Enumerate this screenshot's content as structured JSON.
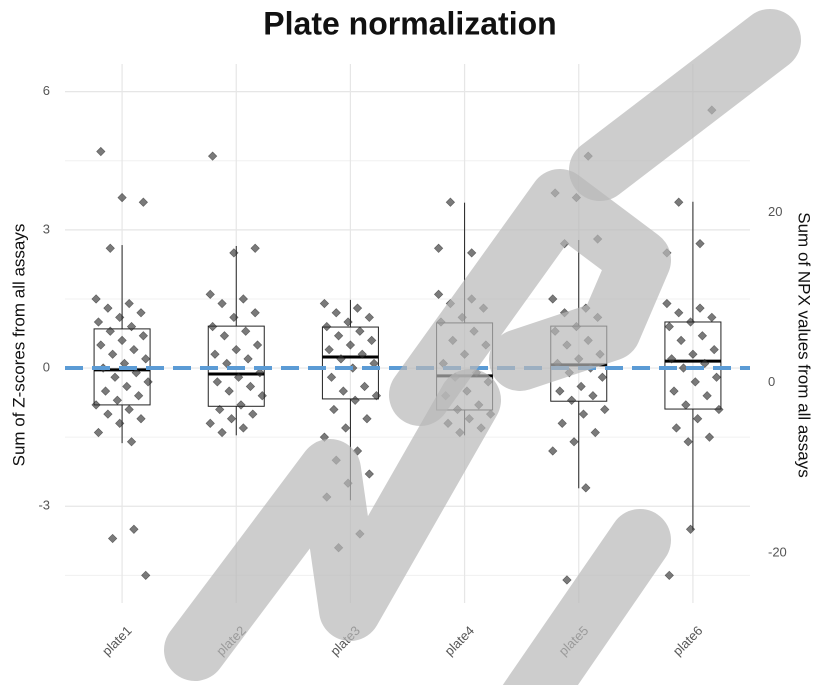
{
  "chart_data": {
    "type": "box",
    "title": "Plate normalization",
    "ylabel": "Sum of Z-scores from all assays",
    "y2label": "Sum of NPX values from all assays",
    "categories": [
      "plate1",
      "plate2",
      "plate3",
      "plate4",
      "plate5",
      "plate6"
    ],
    "ylim": [
      -5.1,
      6.6
    ],
    "yticks": [
      -3,
      0,
      3,
      6
    ],
    "y_minor_ticks": [
      -4.5,
      -1.5,
      1.5,
      4.5
    ],
    "y2lim": [
      -25.9,
      37.5
    ],
    "y2ticks": [
      -20,
      0,
      20
    ],
    "grid": true,
    "reference_line": 0,
    "reference_color": "#5b9bd5",
    "box_color": "#222222",
    "point_color": "#333333",
    "boxes": [
      {
        "whisker_low": -1.63,
        "q1": -0.8,
        "median": -0.04,
        "q3": 0.85,
        "whisker_high": 2.67,
        "points": [
          1.5,
          1.4,
          1.3,
          1.2,
          1.1,
          1.0,
          0.9,
          0.8,
          0.7,
          0.6,
          0.5,
          0.4,
          0.3,
          0.2,
          0.1,
          0,
          -0.1,
          -0.2,
          -0.3,
          -0.4,
          -0.5,
          -0.6,
          -0.7,
          -0.8,
          -0.9,
          -1.0,
          -1.1,
          -1.2,
          -1.4,
          -1.6,
          2.6,
          3.6,
          3.7,
          4.7,
          -3.5,
          -3.7,
          -4.5
        ]
      },
      {
        "whisker_low": -1.46,
        "q1": -0.83,
        "median": -0.13,
        "q3": 0.91,
        "whisker_high": 2.65,
        "points": [
          1.6,
          1.5,
          1.4,
          1.2,
          1.1,
          0.9,
          0.8,
          0.7,
          0.5,
          0.4,
          0.3,
          0.2,
          0.1,
          -0.1,
          -0.2,
          -0.3,
          -0.4,
          -0.5,
          -0.6,
          -0.8,
          -0.9,
          -1.0,
          -1.1,
          -1.2,
          -1.3,
          -1.4,
          2.6,
          2.5,
          4.6
        ]
      },
      {
        "whisker_low": -2.87,
        "q1": -0.67,
        "median": 0.24,
        "q3": 0.89,
        "whisker_high": 1.48,
        "points": [
          1.4,
          1.3,
          1.2,
          1.1,
          1.0,
          0.9,
          0.8,
          0.7,
          0.6,
          0.5,
          0.4,
          0.3,
          0.2,
          0.1,
          0,
          -0.2,
          -0.4,
          -0.5,
          -0.6,
          -0.7,
          -0.9,
          -1.1,
          -1.3,
          -1.5,
          -1.8,
          -2.0,
          -2.3,
          -2.5,
          -2.8,
          -3.6,
          -3.9
        ]
      },
      {
        "whisker_low": -1.46,
        "q1": -0.91,
        "median": -0.17,
        "q3": 0.98,
        "whisker_high": 3.59,
        "points": [
          1.6,
          1.5,
          1.4,
          1.3,
          1.1,
          1.0,
          0.8,
          0.6,
          0.5,
          0.3,
          0.1,
          -0.1,
          -0.2,
          -0.3,
          -0.5,
          -0.6,
          -0.8,
          -0.9,
          -1.0,
          -1.1,
          -1.2,
          -1.3,
          -1.4,
          2.6,
          2.5,
          3.6
        ]
      },
      {
        "whisker_low": -2.61,
        "q1": -0.72,
        "median": 0.07,
        "q3": 0.91,
        "whisker_high": 2.78,
        "points": [
          1.5,
          1.3,
          1.2,
          1.1,
          0.9,
          0.8,
          0.6,
          0.5,
          0.3,
          0.2,
          0.1,
          0,
          -0.1,
          -0.2,
          -0.4,
          -0.5,
          -0.6,
          -0.7,
          -0.9,
          -1.0,
          -1.2,
          -1.4,
          -1.6,
          -1.8,
          -2.6,
          2.7,
          2.8,
          3.7,
          3.8,
          4.6,
          -4.6
        ]
      },
      {
        "whisker_low": -3.52,
        "q1": -0.89,
        "median": 0.15,
        "q3": 1.0,
        "whisker_high": 3.61,
        "points": [
          1.4,
          1.3,
          1.2,
          1.1,
          1.0,
          0.9,
          0.7,
          0.6,
          0.4,
          0.3,
          0.2,
          0.1,
          0,
          -0.2,
          -0.3,
          -0.5,
          -0.6,
          -0.8,
          -0.9,
          -1.1,
          -1.3,
          -1.5,
          -1.6,
          2.5,
          2.7,
          3.6,
          5.6,
          -3.5,
          -4.5
        ]
      }
    ]
  }
}
